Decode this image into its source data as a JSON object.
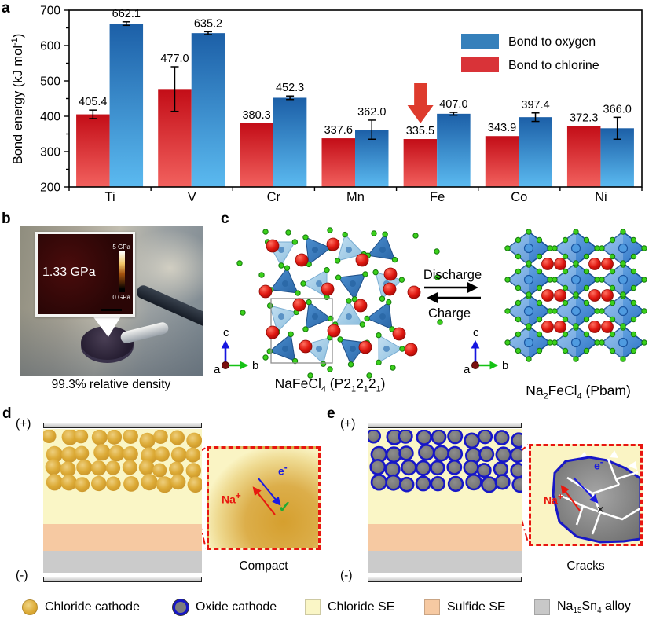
{
  "figure": {
    "panel_labels": {
      "a": "a",
      "b": "b",
      "c": "c",
      "d": "d",
      "e": "e"
    }
  },
  "chart_data": {
    "type": "bar",
    "title": "",
    "xlabel": "",
    "ylabel": "Bond energy (kJ mol-1)",
    "ylabel_parts": [
      {
        "t": "Bond energy (kJ mol"
      },
      {
        "sup": "-1"
      },
      {
        "t": ")"
      }
    ],
    "ylim": [
      200,
      700
    ],
    "ytick_major": 100,
    "ytick_minor": 50,
    "grid": false,
    "legend_position": "top-right",
    "categories": [
      "Ti",
      "V",
      "Cr",
      "Mn",
      "Fe",
      "Co",
      "Ni"
    ],
    "series": [
      {
        "name": "Bond to chlorine",
        "color_top": "#c30d17",
        "color_bottom": "#f2615e",
        "legend_color": "#d93338",
        "values": [
          405.4,
          477.0,
          380.3,
          337.6,
          335.5,
          343.9,
          372.3
        ],
        "errors": [
          12,
          63,
          0,
          0,
          0,
          0,
          0
        ]
      },
      {
        "name": "Bond to oxygen",
        "color_top": "#1c5fa7",
        "color_bottom": "#5bbaf0",
        "legend_color": "#3580bb",
        "values": [
          662.1,
          635.2,
          452.3,
          362.0,
          407.0,
          397.4,
          366.0
        ],
        "errors": [
          5,
          4,
          5,
          27,
          4,
          12,
          31
        ]
      }
    ],
    "legend_order": [
      "Bond to oxygen",
      "Bond to chlorine"
    ],
    "annotation": {
      "category": "Fe",
      "series": "Bond to chlorine",
      "shape": "down-arrow",
      "color": "#de3b2d"
    }
  },
  "panel_b": {
    "inset_value": "1.33 GPa",
    "scale_max": "5 GPa",
    "scale_min": "0 GPa",
    "caption": "99.3% relative density"
  },
  "panel_c": {
    "discharge": "Discharge",
    "charge": "Charge",
    "axes": {
      "a": "a",
      "b": "b",
      "c": "c"
    },
    "left_formula": [
      {
        "t": "NaFeCl"
      },
      {
        "sub": "4"
      },
      {
        "t": " (P2"
      },
      {
        "sub": "1"
      },
      {
        "t": "2"
      },
      {
        "sub": "1"
      },
      {
        "t": "2"
      },
      {
        "sub": "1"
      },
      {
        "t": ")"
      }
    ],
    "right_formula": [
      {
        "t": "Na"
      },
      {
        "sub": "2"
      },
      {
        "t": "FeCl"
      },
      {
        "sub": "4"
      },
      {
        "t": " (Pbam)"
      }
    ]
  },
  "panel_d": {
    "plus": "(+)",
    "minus": "(-)",
    "na_label": [
      {
        "t": "Na"
      },
      {
        "sup": "+"
      }
    ],
    "e_label": [
      {
        "t": "e"
      },
      {
        "sup": "-"
      }
    ],
    "check": "✓",
    "caption": "Compact"
  },
  "panel_e": {
    "plus": "(+)",
    "minus": "(-)",
    "na_label": [
      {
        "t": "Na"
      },
      {
        "sup": "+"
      }
    ],
    "e_label": [
      {
        "t": "e"
      },
      {
        "sup": "-"
      }
    ],
    "cross": "×",
    "caption": "Cracks"
  },
  "legend": {
    "items": [
      {
        "label": "Chloride cathode",
        "swatch": "circle",
        "fill": "#dcaa35"
      },
      {
        "label": "Oxide cathode",
        "swatch": "circle",
        "fill": "#7d7d7d",
        "border": "#1717c8"
      },
      {
        "label": "Chloride SE",
        "swatch": "square",
        "fill": "#faf6c6"
      },
      {
        "label": "Sulfide SE",
        "swatch": "square",
        "fill": "#f6c9a2"
      },
      {
        "label": "Na15Sn4 alloy",
        "label_rich": [
          {
            "t": "Na"
          },
          {
            "sub": "15"
          },
          {
            "t": "Sn"
          },
          {
            "sub": "4"
          },
          {
            "t": " alloy"
          }
        ],
        "swatch": "square",
        "fill": "#c8c8c8"
      }
    ]
  }
}
